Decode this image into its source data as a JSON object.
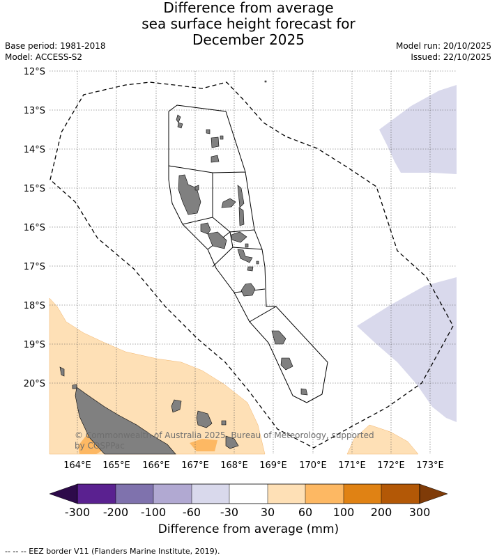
{
  "title": {
    "line1": "Difference from average",
    "line2": "sea surface height forecast for",
    "line3": "December 2025"
  },
  "meta_left": {
    "base_period": "Base period: 1981-2018",
    "model": "Model: ACCESS-S2"
  },
  "meta_right": {
    "model_run": "Model run: 20/10/2025",
    "issued": "Issued: 22/10/2025"
  },
  "map": {
    "lat_labels": [
      "12°S",
      "13°S",
      "14°S",
      "15°S",
      "16°S",
      "17°S",
      "18°S",
      "19°S",
      "20°S"
    ],
    "lon_labels": [
      "164°E",
      "165°E",
      "166°E",
      "167°E",
      "168°E",
      "169°E",
      "170°E",
      "171°E",
      "172°E",
      "173°E"
    ],
    "copyright_line1": "© Commonwealth of Australia 2025, Bureau of Meteorology, supported",
    "copyright_line2": "by COSPPac"
  },
  "colorbar": {
    "ticks": [
      "-300",
      "-200",
      "-100",
      "-60",
      "-30",
      "30",
      "60",
      "100",
      "200",
      "300"
    ],
    "colors": [
      "#2d0a4a",
      "#5a2190",
      "#7f72ad",
      "#b1a9d2",
      "#d9d9ec",
      "#ffffff",
      "#fee0b6",
      "#fdb863",
      "#e08214",
      "#b35806",
      "#7f3b08"
    ],
    "label": "Difference from average (mm)"
  },
  "footnote": "--  --  -- EEZ border V11 (Flanders Marine Institute, 2019)."
}
